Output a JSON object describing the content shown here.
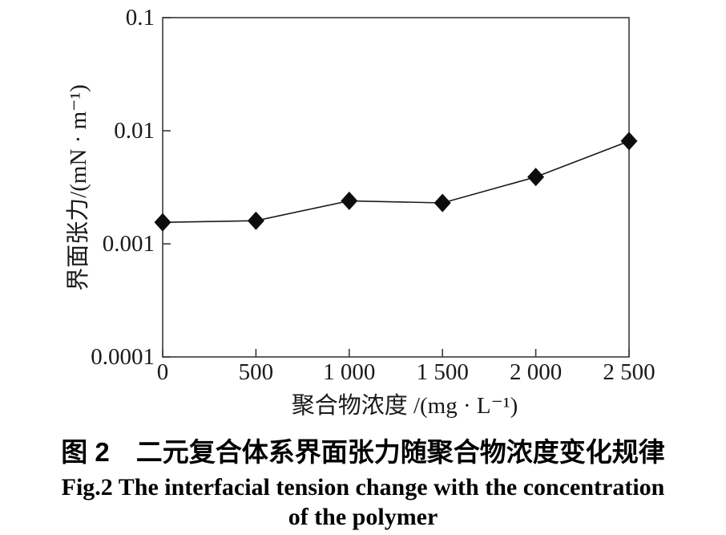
{
  "figure": {
    "caption_zh": "图 2　二元复合体系界面张力随聚合物浓度变化规律",
    "caption_en": "Fig.2 The interfacial tension change with the concentration\nof the polymer"
  },
  "chart_data": {
    "type": "line",
    "title": "",
    "x": [
      0,
      500,
      1000,
      1500,
      2000,
      2500
    ],
    "y": [
      0.00155,
      0.0016,
      0.0024,
      0.0023,
      0.0039,
      0.0081
    ],
    "series": [
      {
        "name": "二元复合体系界面张力",
        "values": [
          0.00155,
          0.0016,
          0.0024,
          0.0023,
          0.0039,
          0.0081
        ]
      }
    ],
    "xlabel": "聚合物浓度 /(mg · L⁻¹)",
    "ylabel": "界面张力/(mN · m⁻¹)",
    "x_tick_values": [
      0,
      500,
      1000,
      1500,
      2000,
      2500
    ],
    "x_tick_labels": [
      "0",
      "500",
      "1 000",
      "1 500",
      "2 000",
      "2 500"
    ],
    "y_tick_values": [
      0.1,
      0.01,
      0.001,
      0.0001
    ],
    "y_tick_labels": [
      "0.1",
      "0.01",
      "0.001",
      "0.0001"
    ],
    "xlim": [
      0,
      2500
    ],
    "ylim": [
      0.0001,
      0.1
    ],
    "y_scale": "log",
    "grid": "off",
    "legend": "none",
    "marker": "diamond",
    "line_color": "#1a1a1a",
    "marker_color": "#0d0d0d",
    "border_color": "#3a3a3a"
  }
}
